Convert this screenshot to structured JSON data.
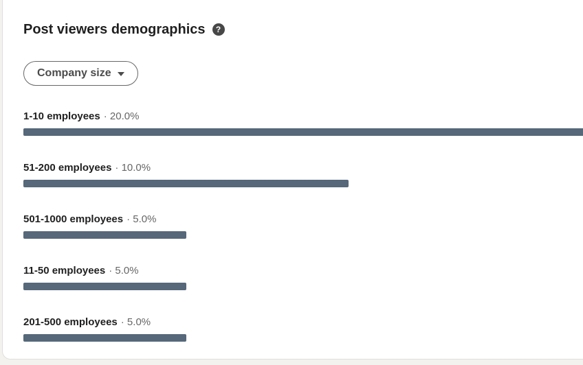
{
  "page": {
    "background_color": "#f4f2ee",
    "card_background": "#ffffff",
    "card_border_color": "#e0dfdc"
  },
  "header": {
    "title": "Post viewers demographics",
    "help_icon": "question-mark-circle-icon",
    "help_glyph": "?"
  },
  "filter": {
    "label": "Company size",
    "caret_icon": "chevron-down-icon"
  },
  "chart_data": {
    "type": "bar",
    "orientation": "horizontal",
    "title": "Post viewers demographics",
    "filter_selected": "Company size",
    "categories": [
      "1-10 employees",
      "51-200 employees",
      "501-1000 employees",
      "11-50 employees",
      "201-500 employees"
    ],
    "values": [
      20.0,
      10.0,
      5.0,
      5.0,
      5.0
    ],
    "value_labels": [
      "20.0%",
      "10.0%",
      "5.0%",
      "5.0%",
      "5.0%"
    ],
    "separator": "·",
    "unit": "%",
    "bar_color": "#56687a",
    "full_width_value": 20.0,
    "axis": "none",
    "grid": false,
    "legend": "none"
  }
}
